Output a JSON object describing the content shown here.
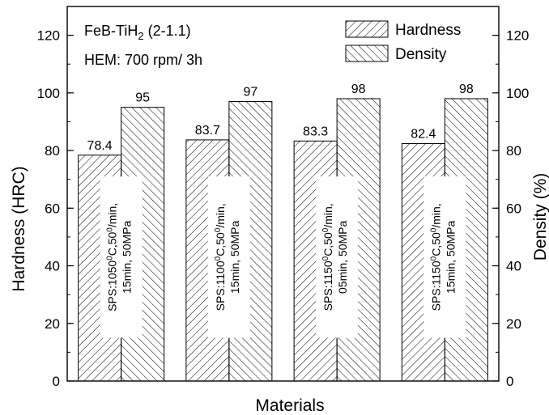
{
  "chart_data": {
    "type": "bar",
    "title": "",
    "annotations": {
      "composition_base": "FeB-TiH",
      "composition_sub": "2",
      "composition_rest": " (2-1.1)",
      "process": "HEM: 700 rpm/ 3h"
    },
    "xlabel": "Materials",
    "ylabel_left": "Hardness (HRC)",
    "ylabel_right": "Density (%)",
    "ylim": [
      0,
      130
    ],
    "yticks": [
      0,
      20,
      40,
      60,
      80,
      100,
      120
    ],
    "y_minor_step": 10,
    "grid": false,
    "legend_position": "top-right",
    "categories": [
      {
        "line1_prefix": "SPS:1050",
        "line1_sup": "0",
        "line1_mid": "C,50",
        "line1_sup2": "0",
        "line1_suffix": "/min,",
        "line2": "15min, 50MPa"
      },
      {
        "line1_prefix": "SPS:1100",
        "line1_sup": "0",
        "line1_mid": "C,50",
        "line1_sup2": "0",
        "line1_suffix": "/min,",
        "line2": "15min, 50MPa"
      },
      {
        "line1_prefix": "SPS:1150",
        "line1_sup": "0",
        "line1_mid": "C,50",
        "line1_sup2": "0",
        "line1_suffix": "/min,",
        "line2": "05min, 50MPa"
      },
      {
        "line1_prefix": "SPS:1150",
        "line1_sup": "0",
        "line1_mid": "C,50",
        "line1_sup2": "0",
        "line1_suffix": "/min,",
        "line2": "15min, 50MPa"
      }
    ],
    "series": [
      {
        "name": "Hardness",
        "axis": "left",
        "hatch": "forward-diagonal",
        "values": [
          78.4,
          83.7,
          83.3,
          82.4
        ],
        "value_labels": [
          "78.4",
          "83.7",
          "83.3",
          "82.4"
        ]
      },
      {
        "name": "Density",
        "axis": "right",
        "hatch": "back-diagonal",
        "values": [
          95,
          97,
          98,
          98
        ],
        "value_labels": [
          "95",
          "97",
          "98",
          "98"
        ]
      }
    ]
  }
}
